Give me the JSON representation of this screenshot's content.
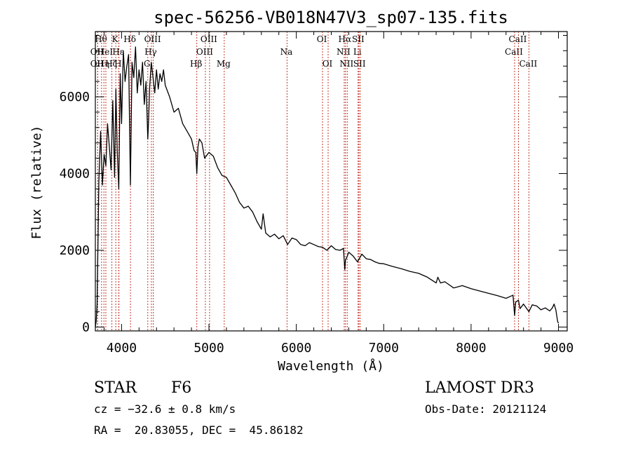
{
  "chart_data": {
    "type": "line",
    "title": "spec-56256-VB018N47V3_sp07-135.fits",
    "xlabel": "Wavelength (Å)",
    "ylabel": "Flux (relative)",
    "xlim": [
      3700,
      9100
    ],
    "ylim": [
      -100,
      7700
    ],
    "xticks": [
      4000,
      5000,
      6000,
      7000,
      8000,
      9000
    ],
    "yticks": [
      0,
      2000,
      4000,
      6000
    ],
    "series": [
      {
        "name": "flux",
        "x": [
          3700,
          3710,
          3720,
          3740,
          3760,
          3780,
          3800,
          3820,
          3840,
          3860,
          3880,
          3900,
          3920,
          3935,
          3950,
          3968,
          3985,
          4000,
          4020,
          4040,
          4060,
          4080,
          4101,
          4120,
          4140,
          4160,
          4180,
          4200,
          4220,
          4240,
          4260,
          4280,
          4300,
          4310,
          4320,
          4340,
          4360,
          4380,
          4400,
          4420,
          4440,
          4460,
          4480,
          4500,
          4550,
          4600,
          4650,
          4700,
          4750,
          4800,
          4830,
          4850,
          4861,
          4875,
          4890,
          4920,
          4950,
          5000,
          5050,
          5100,
          5150,
          5200,
          5250,
          5300,
          5350,
          5400,
          5450,
          5500,
          5550,
          5600,
          5620,
          5650,
          5700,
          5750,
          5800,
          5850,
          5890,
          5900,
          5950,
          6000,
          6050,
          6100,
          6150,
          6200,
          6250,
          6300,
          6350,
          6400,
          6450,
          6500,
          6540,
          6555,
          6563,
          6575,
          6600,
          6650,
          6700,
          6750,
          6800,
          6850,
          6900,
          6950,
          7000,
          7100,
          7200,
          7300,
          7400,
          7500,
          7600,
          7620,
          7650,
          7700,
          7800,
          7900,
          8000,
          8100,
          8200,
          8300,
          8400,
          8450,
          8480,
          8498,
          8510,
          8542,
          8560,
          8600,
          8662,
          8700,
          8750,
          8800,
          8850,
          8900,
          8930,
          8950,
          8970,
          8990,
          9000
        ],
        "values": [
          0,
          150,
          600,
          3800,
          5100,
          3700,
          4500,
          4200,
          5300,
          4700,
          4100,
          5900,
          3900,
          6200,
          4600,
          3600,
          6600,
          5300,
          7200,
          6400,
          6800,
          7100,
          3700,
          6900,
          6500,
          7300,
          6100,
          6700,
          6300,
          6900,
          5800,
          6400,
          4900,
          5400,
          6200,
          6900,
          6500,
          6100,
          6700,
          6200,
          6600,
          6400,
          6700,
          6300,
          6000,
          5600,
          5700,
          5300,
          5100,
          4900,
          4600,
          4550,
          4000,
          4700,
          4900,
          4800,
          4400,
          4550,
          4450,
          4150,
          3950,
          3900,
          3700,
          3500,
          3250,
          3100,
          3150,
          3000,
          2750,
          2550,
          2950,
          2450,
          2350,
          2420,
          2300,
          2380,
          2200,
          2150,
          2320,
          2280,
          2150,
          2120,
          2200,
          2150,
          2100,
          2080,
          2000,
          2120,
          2020,
          2000,
          2050,
          1500,
          1750,
          1800,
          1950,
          1850,
          1700,
          1900,
          1780,
          1760,
          1700,
          1660,
          1650,
          1580,
          1520,
          1450,
          1400,
          1300,
          1150,
          1300,
          1150,
          1180,
          1020,
          1080,
          1000,
          940,
          880,
          820,
          750,
          800,
          830,
          300,
          650,
          700,
          480,
          600,
          400,
          580,
          550,
          450,
          500,
          420,
          500,
          600,
          450,
          150,
          100
        ]
      }
    ],
    "lines": [
      {
        "wl": 3727,
        "label": "OII",
        "row": 2
      },
      {
        "wl": 3727,
        "label": "OII",
        "row": 3
      },
      {
        "wl": 3771,
        "label": "Hθ",
        "row": 1
      },
      {
        "wl": 3798,
        "label": "Hη",
        "row": 3
      },
      {
        "wl": 3820,
        "label": "HeI",
        "row": 2
      },
      {
        "wl": 3889,
        "label": "Hζ",
        "row": 3
      },
      {
        "wl": 3934,
        "label": "K",
        "row": 1
      },
      {
        "wl": 3968,
        "label": "H",
        "row": 3
      },
      {
        "wl": 3970,
        "label": "Hε",
        "row": 2
      },
      {
        "wl": 4102,
        "label": "Hδ",
        "row": 1
      },
      {
        "wl": 4300,
        "label": "G",
        "row": 3
      },
      {
        "wl": 4341,
        "label": "Hγ",
        "row": 2
      },
      {
        "wl": 4363,
        "label": "OIII",
        "row": 1
      },
      {
        "wl": 4861,
        "label": "Hβ",
        "row": 3
      },
      {
        "wl": 4959,
        "label": "OIII",
        "row": 2
      },
      {
        "wl": 5007,
        "label": "OIII",
        "row": 1
      },
      {
        "wl": 5175,
        "label": "Mg",
        "row": 3
      },
      {
        "wl": 5894,
        "label": "Na",
        "row": 2
      },
      {
        "wl": 6300,
        "label": "OI",
        "row": 1
      },
      {
        "wl": 6364,
        "label": "OI",
        "row": 3
      },
      {
        "wl": 6548,
        "label": "NII",
        "row": 2
      },
      {
        "wl": 6563,
        "label": "Hα",
        "row": 1
      },
      {
        "wl": 6583,
        "label": "NII",
        "row": 3
      },
      {
        "wl": 6707,
        "label": "Li",
        "row": 2
      },
      {
        "wl": 6716,
        "label": "SII",
        "row": 1
      },
      {
        "wl": 6731,
        "label": "SII",
        "row": 3
      },
      {
        "wl": 8498,
        "label": "CaII",
        "row": 2
      },
      {
        "wl": 8542,
        "label": "CaII",
        "row": 1
      },
      {
        "wl": 8662,
        "label": "CaII",
        "row": 3
      }
    ]
  },
  "info": {
    "class_label": "STAR",
    "subclass": "F6",
    "survey": "LAMOST DR3",
    "velocity": "cz = −32.6 ± 0.8 km/s",
    "obs_date": "Obs-Date: 20121124",
    "coords": "RA =  20.83055, DEC =  45.86182"
  },
  "colors": {
    "line_marker": "#c0392b",
    "spectrum": "#000000",
    "axes": "#000000"
  }
}
